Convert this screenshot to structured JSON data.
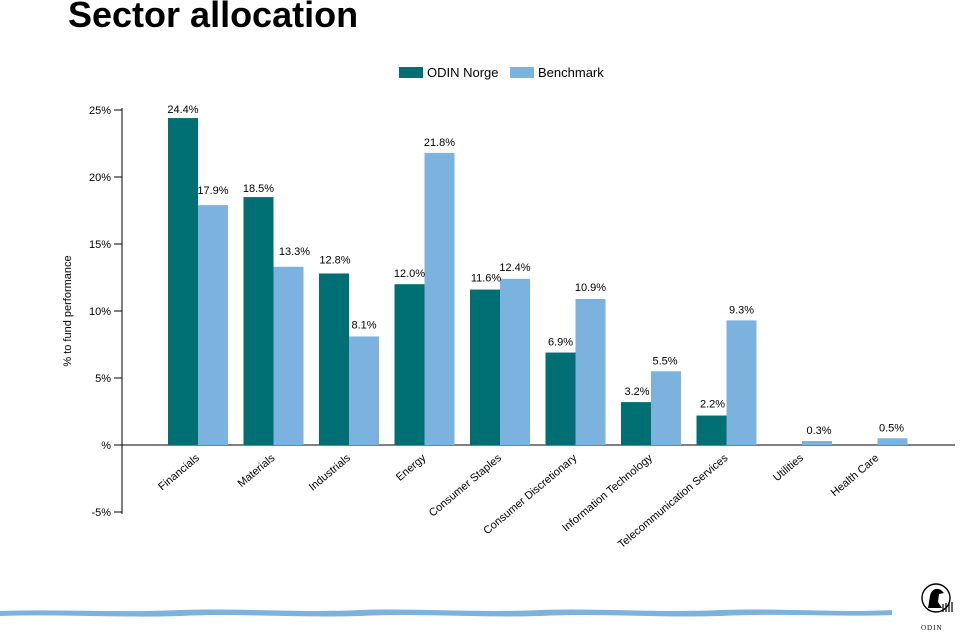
{
  "title": "Sector allocation",
  "colors": {
    "series_1": "#006f74",
    "series_2": "#7cb2de",
    "footer_wave": "#7cb2de"
  },
  "logo": {
    "text": "ODIN"
  },
  "chart_data": {
    "type": "bar",
    "title": "",
    "ylabel": "% to fund performance",
    "xlabel": "",
    "ylim": [
      -5,
      25
    ],
    "yticks": [
      25,
      20,
      15,
      10,
      5,
      0,
      -5
    ],
    "ytick_labels": [
      "25%",
      "20%",
      "15%",
      "10%",
      "5%",
      "%",
      "-5%"
    ],
    "categories": [
      "Financials",
      "Materials",
      "Industrials",
      "Energy",
      "Consumer Staples",
      "Consumer Discretionary",
      "Information Technology",
      "Telecommunication Services",
      "Utilities",
      "Health Care"
    ],
    "series": [
      {
        "name": "ODIN Norge",
        "values": [
          24.4,
          18.5,
          12.8,
          12.0,
          11.6,
          6.9,
          3.2,
          2.2,
          null,
          null
        ],
        "labels": [
          "24.4%",
          "18.5%",
          "12.8%",
          "12.0%",
          "11.6%",
          "6.9%",
          "3.2%",
          "2.2%",
          null,
          null
        ]
      },
      {
        "name": "Benchmark",
        "values": [
          17.9,
          13.3,
          8.1,
          21.8,
          12.4,
          10.9,
          5.5,
          9.3,
          0.3,
          0.5
        ],
        "labels": [
          "17.9%",
          "13.3%",
          "8.1%",
          "21.8%",
          "12.4%",
          "10.9%",
          "5.5%",
          "9.3%",
          "0.3%",
          "0.5%"
        ]
      }
    ],
    "legend": "top-center",
    "grid": false
  }
}
